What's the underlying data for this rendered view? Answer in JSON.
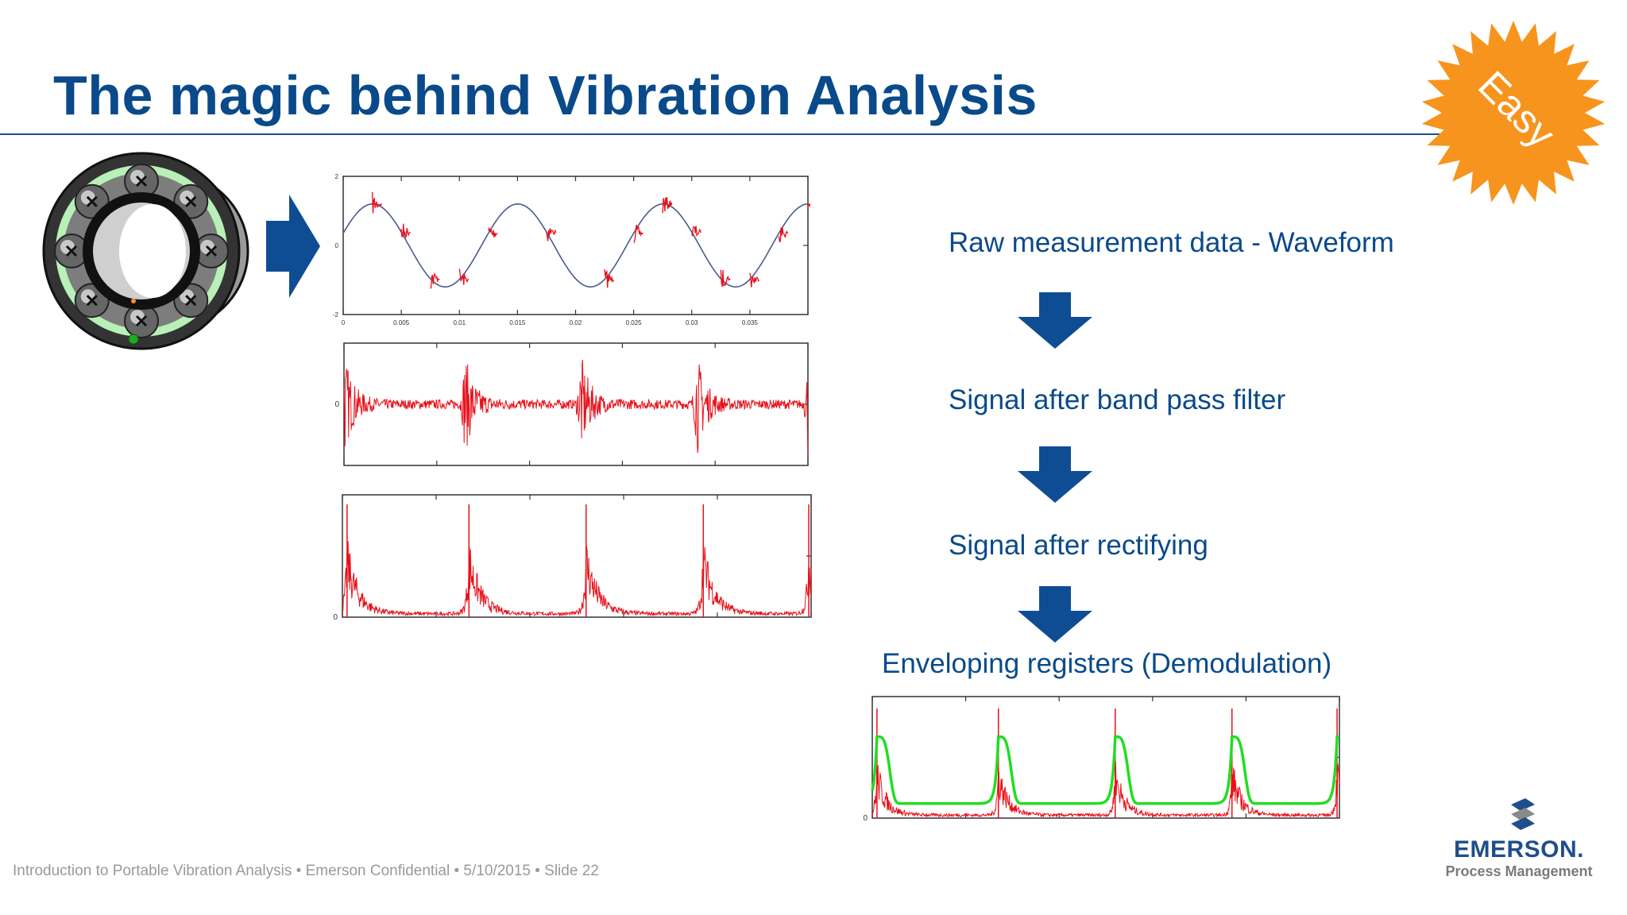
{
  "title": "The magic behind Vibration Analysis",
  "badge": {
    "text": "Easy",
    "color": "#f7941d"
  },
  "colors": {
    "title": "#0a4a8a",
    "arrow": "#0e4d94",
    "raw_signal": "#4a5a8c",
    "spikes": "#e8101a",
    "envelope": "#22dd22",
    "footer": "#999999"
  },
  "icons": {
    "bearing": "rolling-element-bearing-icon",
    "arrow_right": "arrow-right-icon",
    "arrow_down": "arrow-down-icon",
    "logo": "emerson-logo-icon"
  },
  "stages": {
    "raw": "Raw measurement data - Waveform",
    "bandpass": "Signal after band pass filter",
    "rectified": "Signal after rectifying",
    "envelope": "Enveloping registers (Demodulation)"
  },
  "chart_data": [
    {
      "type": "line",
      "title": "",
      "x_ticks": [
        "0",
        "0.005",
        "0.01",
        "0.015",
        "0.02",
        "0.025",
        "0.03",
        "0.035"
      ],
      "y_ticks": [
        "2",
        "0",
        "-2"
      ],
      "xlim": [
        0,
        0.04
      ],
      "ylim": [
        -2,
        2
      ],
      "series": [
        {
          "kind": "sine",
          "amplitude": 1.2,
          "period": 0.0125,
          "phase_start": 0.3
        }
      ],
      "impacts_x": [
        0.0025,
        0.005,
        0.0075,
        0.01,
        0.0125,
        0.0175,
        0.0225,
        0.025,
        0.0275,
        0.03,
        0.0325,
        0.035,
        0.0375,
        0.04
      ]
    },
    {
      "type": "line",
      "title": "",
      "y_ticks": [
        "0"
      ],
      "ylim": [
        -1,
        1
      ],
      "burst_positions": [
        0.0,
        0.26,
        0.51,
        0.76,
        1.0
      ]
    },
    {
      "type": "line",
      "title": "",
      "y_ticks": [
        "0"
      ],
      "ylim": [
        0,
        1
      ],
      "spike_positions": [
        0.01,
        0.27,
        0.52,
        0.77,
        0.995
      ]
    },
    {
      "type": "line",
      "title": "",
      "y_ticks": [
        "0"
      ],
      "ylim": [
        0,
        1
      ],
      "spike_positions": [
        0.01,
        0.27,
        0.52,
        0.77,
        0.995
      ],
      "envelope_level": 0.12
    }
  ],
  "footer": "Introduction to Portable Vibration Analysis • Emerson Confidential • 5/10/2015 • Slide 22",
  "logo": {
    "name": "EMERSON.",
    "subtitle": "Process Management"
  }
}
